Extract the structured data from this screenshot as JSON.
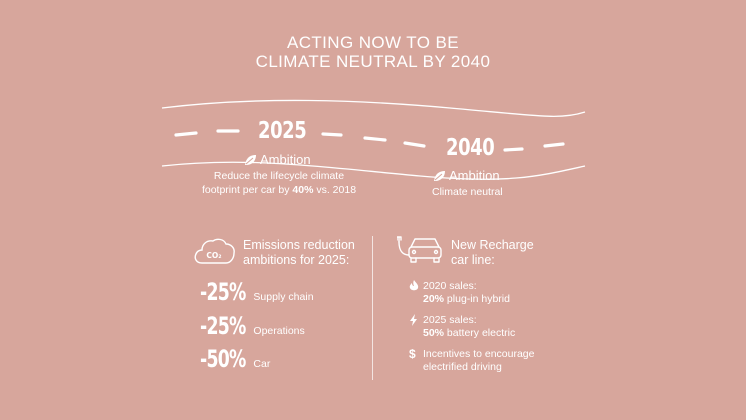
{
  "title": {
    "line1": "ACTING NOW TO BE",
    "line2": "CLIMATE NEUTRAL BY 2040"
  },
  "milestones": [
    {
      "year": "2025",
      "ambition_label": "Ambition",
      "text_line1": "Reduce the lifecycle climate",
      "text_line2_pre": "footprint per car by ",
      "text_line2_bold": "40%",
      "text_line2_post": " vs. 2018"
    },
    {
      "year": "2040",
      "ambition_label": "Ambition",
      "text_line1": "Climate neutral"
    }
  ],
  "emissions": {
    "icon": "co2-cloud-icon",
    "icon_text": "CO₂",
    "heading_line1": "Emissions reduction",
    "heading_line2": "ambitions for 2025:",
    "items": [
      {
        "value": "-25%",
        "label": "Supply chain"
      },
      {
        "value": "-25%",
        "label": "Operations"
      },
      {
        "value": "-50%",
        "label": "Car"
      }
    ]
  },
  "recharge": {
    "icon": "electric-car-icon",
    "heading_line1": "New Recharge",
    "heading_line2": "car line:",
    "items": [
      {
        "icon": "hybrid-flame-icon",
        "line1": "2020 sales:",
        "bold": "20%",
        "rest": " plug-in hybrid"
      },
      {
        "icon": "lightning-icon",
        "line1": "2025 sales:",
        "bold": "50%",
        "rest": " battery electric"
      },
      {
        "icon": "dollar-icon",
        "line1": "Incentives to encourage",
        "line2": "electrified driving"
      }
    ]
  },
  "colors": {
    "background": "#d7a69c",
    "foreground": "#ffffff"
  }
}
